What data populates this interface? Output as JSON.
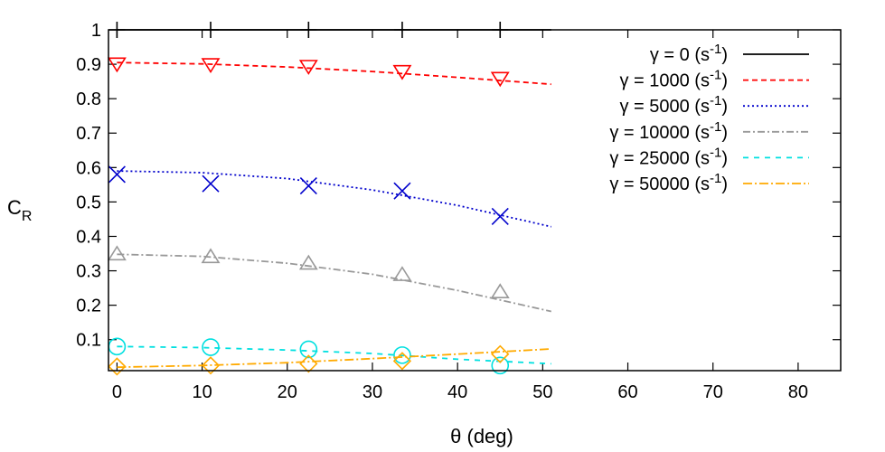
{
  "chart_data": {
    "type": "line",
    "xlabel": "θ (deg)",
    "ylabel_main": "C",
    "ylabel_sub": "R",
    "xlim": [
      -1,
      85
    ],
    "ylim": [
      0.01,
      1.0
    ],
    "x_ticks": [
      0,
      10,
      20,
      30,
      40,
      50,
      60,
      70,
      80
    ],
    "y_ticks": [
      0.1,
      0.2,
      0.3,
      0.4,
      0.5,
      0.6,
      0.7,
      0.8,
      0.9,
      1
    ],
    "x_tick_labels": [
      "0",
      "10",
      "20",
      "30",
      "40",
      "50",
      "60",
      "70",
      "80"
    ],
    "y_tick_labels": [
      "0.1",
      "0.2",
      "0.3",
      "0.4",
      "0.5",
      "0.6",
      "0.7",
      "0.8",
      "0.9",
      "1"
    ],
    "legend_position": "top-right",
    "series": [
      {
        "name": "γ = 0 (s-1)",
        "legend_main": "γ = 0 (s",
        "legend_sup": "-1",
        "legend_close": ")",
        "color": "#000000",
        "dash": "",
        "marker": "plus",
        "line_x": [
          0,
          10,
          20,
          30,
          40,
          51
        ],
        "line_y": [
          1.0,
          1.0,
          1.0,
          1.0,
          1.0,
          1.0
        ],
        "points_x": [
          0,
          11,
          22.5,
          33.5,
          45
        ],
        "points_y": [
          1.0,
          1.0,
          1.0,
          1.0,
          1.0
        ]
      },
      {
        "name": "γ = 1000 (s-1)",
        "legend_main": "γ = 1000 (s",
        "legend_sup": "-1",
        "legend_close": ")",
        "color": "#ff0000",
        "dash": "6,4",
        "marker": "triangle-down",
        "line_x": [
          0,
          10,
          20,
          30,
          40,
          51
        ],
        "line_y": [
          0.905,
          0.901,
          0.892,
          0.879,
          0.862,
          0.842
        ],
        "points_x": [
          0,
          11,
          22.5,
          33.5,
          45
        ],
        "points_y": [
          0.9,
          0.898,
          0.893,
          0.878,
          0.858
        ]
      },
      {
        "name": "γ = 5000 (s-1)",
        "legend_main": "γ = 5000 (s",
        "legend_sup": "-1",
        "legend_close": ")",
        "color": "#0000cc",
        "dash": "2,3",
        "marker": "x",
        "line_x": [
          0,
          10,
          20,
          30,
          40,
          51
        ],
        "line_y": [
          0.59,
          0.585,
          0.568,
          0.535,
          0.49,
          0.428
        ],
        "points_x": [
          0,
          11,
          22.5,
          33.5,
          45
        ],
        "points_y": [
          0.58,
          0.553,
          0.547,
          0.532,
          0.458
        ]
      },
      {
        "name": "γ = 10000 (s-1)",
        "legend_main": "γ = 10000 (s",
        "legend_sup": "-1",
        "legend_close": ")",
        "color": "#999999",
        "dash": "8,3,2,3",
        "marker": "triangle-up",
        "line_x": [
          0,
          10,
          20,
          30,
          40,
          51
        ],
        "line_y": [
          0.348,
          0.342,
          0.322,
          0.29,
          0.243,
          0.182
        ],
        "points_x": [
          0,
          11,
          22.5,
          33.5,
          45
        ],
        "points_y": [
          0.35,
          0.342,
          0.323,
          0.29,
          0.24
        ]
      },
      {
        "name": "γ = 25000 (s-1)",
        "legend_main": "γ = 25000 (s",
        "legend_sup": "-1",
        "legend_close": ")",
        "color": "#00e0e0",
        "dash": "6,6",
        "marker": "circle",
        "line_x": [
          0,
          10,
          20,
          30,
          40,
          51
        ],
        "line_y": [
          0.08,
          0.077,
          0.07,
          0.06,
          0.043,
          0.03
        ],
        "points_x": [
          0,
          11,
          22.5,
          33.5,
          45
        ],
        "points_y": [
          0.08,
          0.078,
          0.072,
          0.055,
          0.025
        ]
      },
      {
        "name": "γ = 50000 (s-1)",
        "legend_main": "γ = 50000 (s",
        "legend_sup": "-1",
        "legend_close": ")",
        "color": "#ffaa00",
        "dash": "10,3,2,3",
        "marker": "diamond",
        "line_x": [
          0,
          10,
          20,
          30,
          40,
          51
        ],
        "line_y": [
          0.02,
          0.025,
          0.033,
          0.045,
          0.058,
          0.073
        ],
        "points_x": [
          0,
          11,
          22.5,
          33.5,
          45
        ],
        "points_y": [
          0.022,
          0.025,
          0.03,
          0.038,
          0.058
        ]
      }
    ]
  }
}
